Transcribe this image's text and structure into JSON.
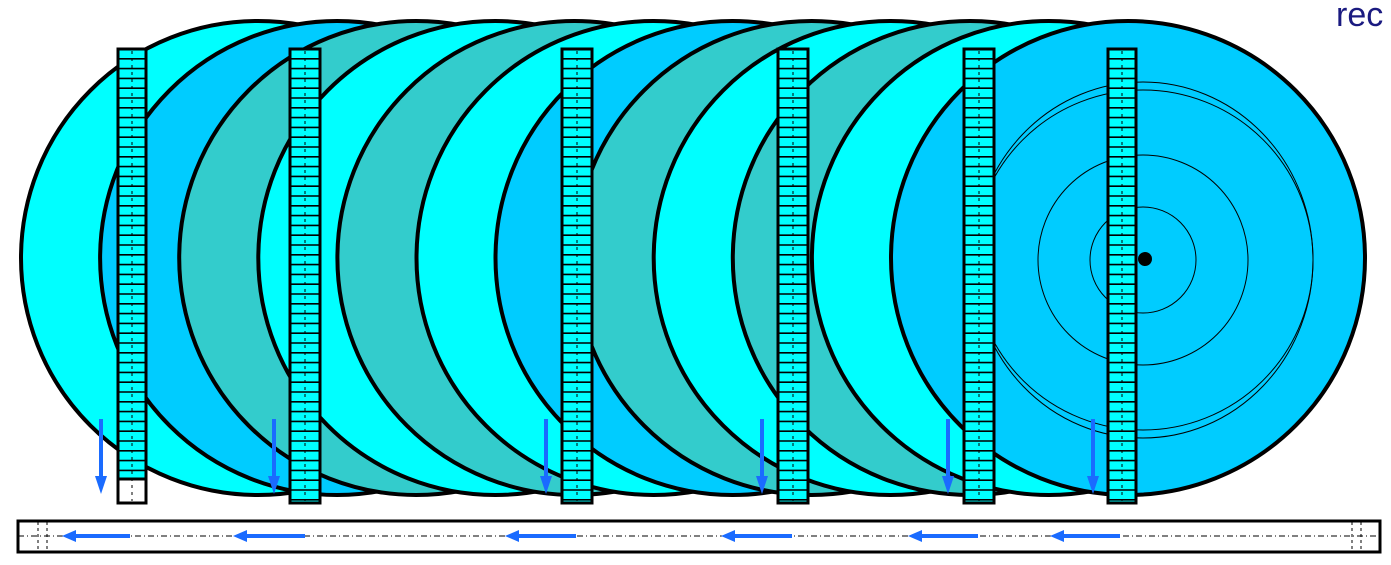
{
  "diagram": {
    "corner_label": "rec",
    "disk_count": 12,
    "disk_fill_colors": [
      "#00ffff",
      "#00ccff",
      "#33cccc",
      "#00ffff",
      "#33cccc",
      "#00ffff",
      "#00ccff",
      "#33cccc",
      "#00ffff",
      "#33cccc",
      "#00ffff",
      "#00ccff"
    ],
    "outline_color": "#000000",
    "arrow_color": "#1a6bff",
    "sensor_count": 6,
    "sensor_fill": "#00ffff",
    "down_arrow_count": 6,
    "left_arrow_count": 6,
    "front_disk_rings": 4
  }
}
